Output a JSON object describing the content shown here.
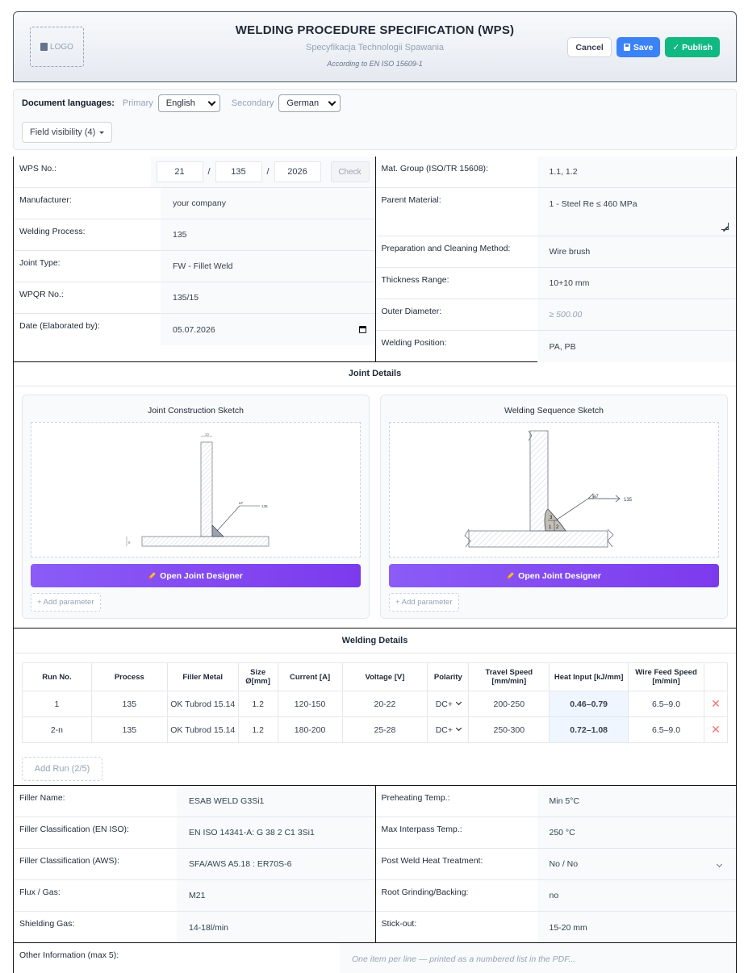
{
  "header": {
    "logo_label": "LOGO",
    "title": "WELDING PROCEDURE SPECIFICATION (WPS)",
    "subtitle": "Specyfikacja Technologii Spawania",
    "standard_note": "According to EN ISO 15609-1",
    "cancel_label": "Cancel",
    "save_label": "Save",
    "publish_label": "✓ Publish"
  },
  "languages": {
    "label": "Document languages:",
    "primary_label": "Primary",
    "primary_value": "English",
    "secondary_label": "Secondary",
    "secondary_value": "German",
    "visibility_label": "Field visibility (4)"
  },
  "left_fields": {
    "wps_no_label": "WPS No.:",
    "wps_no_part1": "21",
    "wps_no_sep1": "/",
    "wps_no_part2": "135",
    "wps_no_sep2": "/",
    "wps_no_part3": "2026",
    "check_label": "Check",
    "manufacturer_label": "Manufacturer:",
    "manufacturer_value": "your company",
    "welding_process_label": "Welding Process:",
    "welding_process_value": "135",
    "joint_type_label": "Joint Type:",
    "joint_type_value": "FW - Fillet Weld",
    "wpqr_label": "WPQR No.:",
    "wpqr_value": "135/15",
    "date_label": "Date (Elaborated by):",
    "date_value": "05.07.2026"
  },
  "right_fields": {
    "mat_group_label": "Mat. Group (ISO/TR 15608):",
    "mat_group_value": "1.1, 1.2",
    "parent_material_label": "Parent Material:",
    "parent_material_value": "1 - Steel Re ≤ 460 MPa",
    "preparation_label": "Preparation and Cleaning Method:",
    "preparation_value": "Wire brush",
    "thickness_label": "Thickness Range:",
    "thickness_value": "10+10 mm",
    "outer_diameter_label": "Outer Diameter:",
    "outer_diameter_value": "≥ 500.00",
    "welding_position_label": "Welding Position:",
    "welding_position_value": "PA, PB"
  },
  "joint_details": {
    "title": "Joint Details",
    "construction_title": "Joint Construction Sketch",
    "sequence_title": "Welding Sequence Sketch",
    "open_designer_label": "Open Joint Designer",
    "add_parameter_label": "+ Add parameter",
    "sketch1_top_dim": "10",
    "sketch1_side_dim": "8",
    "sketch1_weld_symbol": "a7",
    "sketch1_process": "135",
    "sketch2_weld_symbol": "a7",
    "sketch2_process": "135",
    "sketch2_pass1": "1",
    "sketch2_pass2": "2",
    "sketch2_pass3": "3"
  },
  "welding_details": {
    "title": "Welding Details",
    "headers": [
      "Run No.",
      "Process",
      "Filler Metal",
      "Size Ø[mm]",
      "Current [A]",
      "Voltage [V]",
      "Polarity",
      "Travel Speed [mm/min]",
      "Heat Input [kJ/mm]",
      "Wire Feed Speed [m/min]"
    ],
    "runs": [
      {
        "run": "1",
        "process": "135",
        "filler": "OK Tubrod 15.14",
        "size": "1.2",
        "current": "120-150",
        "voltage": "20-22",
        "polarity": "DC+",
        "travel": "200-250",
        "heat": "0.46–0.79",
        "wfs": "6.5–9.0"
      },
      {
        "run": "2-n",
        "process": "135",
        "filler": "OK Tubrod 15.14",
        "size": "1.2",
        "current": "180-200",
        "voltage": "25-28",
        "polarity": "DC+",
        "travel": "250-300",
        "heat": "0.72–1.08",
        "wfs": "6.5–9.0"
      }
    ],
    "delete_glyph": "✕",
    "add_run_label": "Add Run (2/5)"
  },
  "filler_fields": {
    "filler_name_label": "Filler Name:",
    "filler_name_value": "ESAB WELD G3Si1",
    "filler_class_iso_label": "Filler Classification (EN ISO):",
    "filler_class_iso_value": "EN ISO 14341-A: G 38 2 C1 3Si1",
    "filler_class_aws_label": "Filler Classification (AWS):",
    "filler_class_aws_value": "SFA/AWS A5.18 : ER70S-6",
    "flux_gas_label": "Flux / Gas:",
    "flux_gas_value": "M21",
    "shielding_gas_label": "Shielding Gas:",
    "shielding_gas_value": "14-18l/min"
  },
  "heat_fields": {
    "preheat_label": "Preheating Temp.:",
    "preheat_value": "Min 5°C",
    "interpass_label": "Max Interpass Temp.:",
    "interpass_value": "250 °C",
    "pwht_label": "Post Weld Heat Treatment:",
    "pwht_value": "No / No",
    "root_label": "Root Grinding/Backing:",
    "root_value": "no",
    "stickout_label": "Stick-out:",
    "stickout_value": "15-20 mm"
  },
  "other": {
    "label": "Other Information (max 5):",
    "placeholder": "One item per line — printed as a numbered list in the PDF..."
  },
  "colors": {
    "save": "#3b82f6",
    "publish": "#10b981",
    "designer": "#7c3aed",
    "heat_input": "#2563eb",
    "delete": "#f87171"
  }
}
